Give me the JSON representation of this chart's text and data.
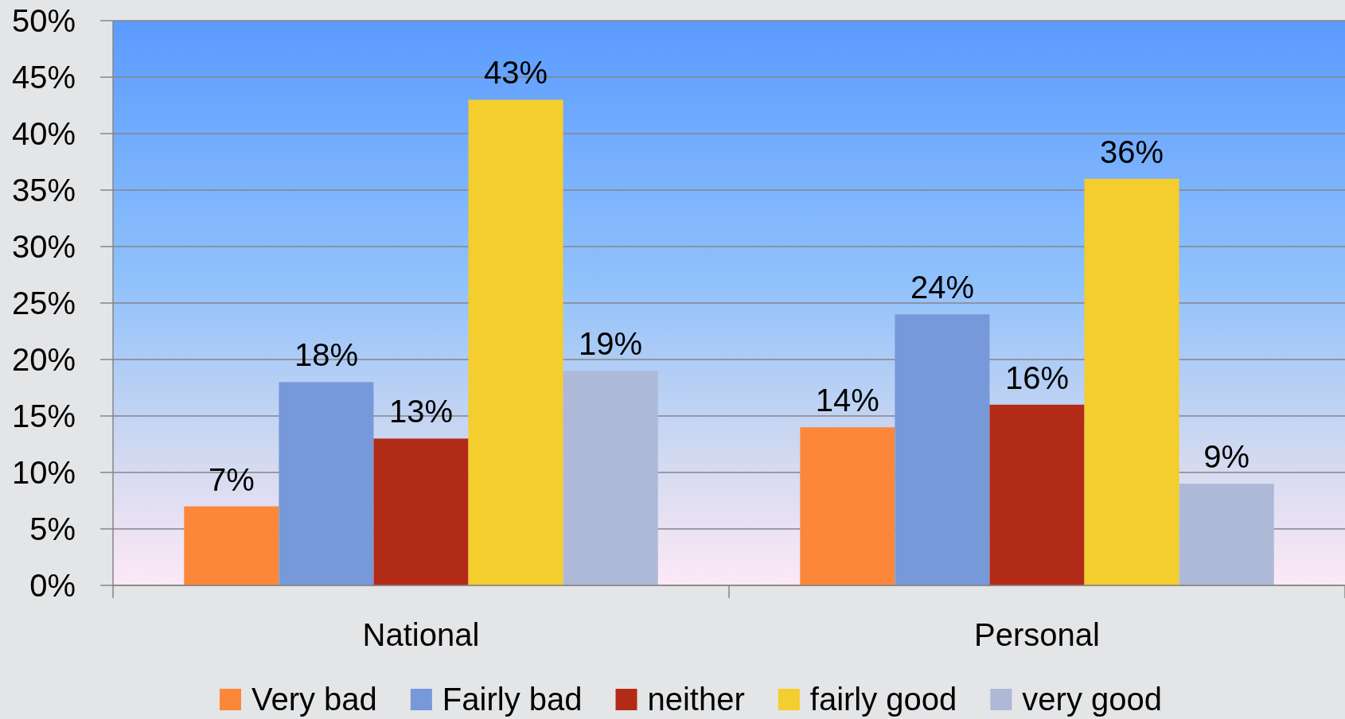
{
  "chart_data": {
    "type": "bar",
    "categories": [
      "National",
      "Personal"
    ],
    "series": [
      {
        "name": "Very bad",
        "color": "#fd8739",
        "values": [
          7,
          14
        ],
        "value_labels": [
          "7%",
          "14%"
        ]
      },
      {
        "name": "Fairly bad",
        "color": "#7799d9",
        "values": [
          18,
          24
        ],
        "value_labels": [
          "18%",
          "24%"
        ]
      },
      {
        "name": "neither",
        "color": "#b22b17",
        "values": [
          13,
          16
        ],
        "value_labels": [
          "13%",
          "16%"
        ]
      },
      {
        "name": "fairly good",
        "color": "#f4cd2e",
        "values": [
          43,
          36
        ],
        "value_labels": [
          "43%",
          "36%"
        ]
      },
      {
        "name": "very good",
        "color": "#adb9d7",
        "values": [
          19,
          9
        ],
        "value_labels": [
          "19%",
          "9%"
        ]
      }
    ],
    "ylim": [
      0,
      50
    ],
    "yticks": [
      {
        "value": 0,
        "label": "0%"
      },
      {
        "value": 5,
        "label": "5%"
      },
      {
        "value": 10,
        "label": "10%"
      },
      {
        "value": 15,
        "label": "15%"
      },
      {
        "value": 20,
        "label": "20%"
      },
      {
        "value": 25,
        "label": "25%"
      },
      {
        "value": 30,
        "label": "30%"
      },
      {
        "value": 35,
        "label": "35%"
      },
      {
        "value": 40,
        "label": "40%"
      },
      {
        "value": 45,
        "label": "45%"
      },
      {
        "value": 50,
        "label": "50%"
      }
    ],
    "grid": "y",
    "legend": "bottom"
  }
}
